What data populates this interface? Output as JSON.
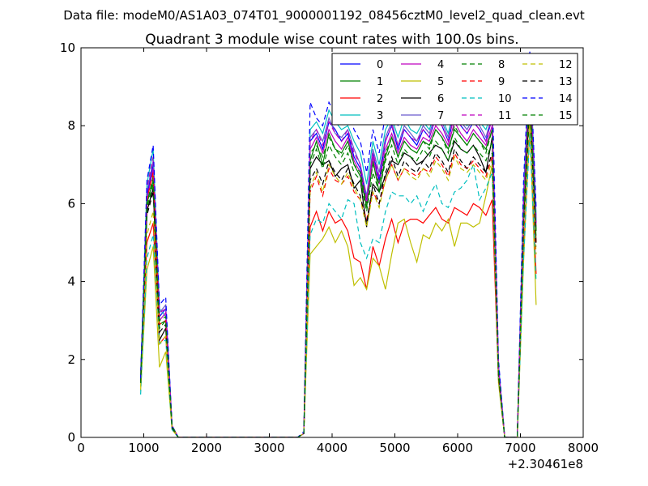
{
  "suptitle": "Data file: modeM0/AS1A03_074T01_9000001192_08456cztM0_level2_quad_clean.evt",
  "chart_data": {
    "type": "line",
    "title": "Quadrant 3 module wise count rates with 100.0s bins.",
    "xlabel": "",
    "ylabel": "",
    "x_offset_label": "+2.30461e8",
    "xlim": [
      0,
      8000
    ],
    "ylim": [
      0,
      10
    ],
    "xticks": [
      0,
      1000,
      2000,
      3000,
      4000,
      5000,
      6000,
      7000,
      8000
    ],
    "yticks": [
      0,
      2,
      4,
      6,
      8,
      10
    ],
    "xtick_labels": [
      "0",
      "1000",
      "2000",
      "3000",
      "4000",
      "5000",
      "6000",
      "7000",
      "8000"
    ],
    "ytick_labels": [
      "0",
      "2",
      "4",
      "6",
      "8",
      "10"
    ],
    "grid": false,
    "legend": {
      "placement": "top-right",
      "columns": 4
    },
    "x": [
      950,
      1050,
      1150,
      1250,
      1350,
      1450,
      1550,
      1650,
      1750,
      1850,
      1950,
      2050,
      2150,
      2250,
      2350,
      2450,
      2550,
      2650,
      2750,
      2850,
      2950,
      3050,
      3150,
      3250,
      3350,
      3450,
      3550,
      3650,
      3750,
      3850,
      3950,
      4050,
      4150,
      4250,
      4350,
      4450,
      4550,
      4650,
      4750,
      4850,
      4950,
      5050,
      5150,
      5250,
      5350,
      5450,
      5550,
      5650,
      5750,
      5850,
      5950,
      6050,
      6150,
      6250,
      6350,
      6450,
      6550,
      6650,
      6750,
      6850,
      6950,
      7050,
      7150,
      7250
    ],
    "series": [
      {
        "name": "0",
        "color": "#0000ff",
        "dash": "solid",
        "values": [
          1.5,
          6.2,
          7.0,
          3.1,
          3.3,
          0.3,
          0,
          0,
          0,
          0,
          0,
          0,
          0,
          0,
          0,
          0,
          0,
          0,
          0,
          0,
          0,
          0,
          0,
          0,
          0,
          0,
          0.1,
          7.6,
          7.8,
          7.4,
          8.1,
          7.9,
          7.6,
          7.8,
          7.2,
          6.9,
          6.1,
          7.3,
          6.6,
          7.6,
          8.0,
          7.4,
          7.9,
          7.7,
          7.5,
          7.9,
          7.7,
          8.2,
          8.0,
          7.6,
          8.3,
          8.0,
          7.8,
          8.1,
          7.9,
          7.6,
          8.2,
          1.8,
          0,
          0,
          0,
          6.0,
          9.5,
          5.5
        ]
      },
      {
        "name": "1",
        "color": "#008000",
        "dash": "solid",
        "values": [
          1.6,
          6.0,
          6.6,
          2.9,
          3.0,
          0.3,
          0,
          0,
          0,
          0,
          0,
          0,
          0,
          0,
          0,
          0,
          0,
          0,
          0,
          0,
          0,
          0,
          0,
          0,
          0,
          0,
          0.1,
          7.1,
          7.6,
          7.0,
          7.8,
          7.4,
          7.3,
          7.6,
          7.0,
          6.7,
          5.9,
          7.1,
          6.3,
          7.2,
          7.7,
          7.2,
          7.6,
          7.4,
          7.3,
          7.6,
          7.5,
          7.9,
          7.7,
          7.4,
          7.9,
          7.7,
          7.5,
          7.8,
          7.6,
          7.4,
          7.9,
          1.7,
          0,
          0,
          0,
          5.8,
          9.0,
          5.3
        ]
      },
      {
        "name": "2",
        "color": "#ff0000",
        "dash": "solid",
        "values": [
          1.4,
          5.0,
          5.5,
          2.4,
          2.6,
          0.25,
          0,
          0,
          0,
          0,
          0,
          0,
          0,
          0,
          0,
          0,
          0,
          0,
          0,
          0,
          0,
          0,
          0,
          0,
          0,
          0,
          0.1,
          5.4,
          5.8,
          5.3,
          5.8,
          5.5,
          5.6,
          5.3,
          4.6,
          4.5,
          3.8,
          4.9,
          4.4,
          5.1,
          5.6,
          5.0,
          5.5,
          5.6,
          5.6,
          5.5,
          5.7,
          5.9,
          5.6,
          5.5,
          5.9,
          5.8,
          5.7,
          6.0,
          5.9,
          5.7,
          6.1,
          1.5,
          0,
          0,
          0,
          4.8,
          7.9,
          4.2
        ]
      },
      {
        "name": "3",
        "color": "#00bfbf",
        "dash": "solid",
        "values": [
          1.5,
          6.5,
          7.4,
          3.3,
          3.1,
          0.3,
          0,
          0,
          0,
          0,
          0,
          0,
          0,
          0,
          0,
          0,
          0,
          0,
          0,
          0,
          0,
          0,
          0,
          0,
          0,
          0,
          0.1,
          7.9,
          8.1,
          7.8,
          8.4,
          8.1,
          7.9,
          8.0,
          7.6,
          7.3,
          6.5,
          7.6,
          7.0,
          7.9,
          8.2,
          7.7,
          8.2,
          7.9,
          7.8,
          8.1,
          7.9,
          8.4,
          8.2,
          7.8,
          8.5,
          8.2,
          8.0,
          8.3,
          8.1,
          7.9,
          8.4,
          1.9,
          0,
          0,
          0,
          6.3,
          9.8,
          5.7
        ]
      },
      {
        "name": "4",
        "color": "#bf00bf",
        "dash": "solid",
        "values": [
          1.5,
          6.1,
          6.9,
          3.0,
          3.2,
          0.3,
          0,
          0,
          0,
          0,
          0,
          0,
          0,
          0,
          0,
          0,
          0,
          0,
          0,
          0,
          0,
          0,
          0,
          0,
          0,
          0,
          0.1,
          7.4,
          7.7,
          7.3,
          7.9,
          7.6,
          7.4,
          7.7,
          7.1,
          6.8,
          6.0,
          7.2,
          6.5,
          7.4,
          7.8,
          7.3,
          7.7,
          7.5,
          7.4,
          7.7,
          7.6,
          8.0,
          7.8,
          7.5,
          8.1,
          7.8,
          7.6,
          7.9,
          7.7,
          7.5,
          8.0,
          1.8,
          0,
          0,
          0,
          5.9,
          9.3,
          5.4
        ]
      },
      {
        "name": "5",
        "color": "#bfbf00",
        "dash": "solid",
        "values": [
          1.2,
          4.3,
          4.9,
          1.8,
          2.2,
          0.2,
          0,
          0,
          0,
          0,
          0,
          0,
          0,
          0,
          0,
          0,
          0,
          0,
          0,
          0,
          0,
          0,
          0,
          0,
          0,
          0,
          0.1,
          4.7,
          4.9,
          5.1,
          5.4,
          5.0,
          5.3,
          4.9,
          3.9,
          4.1,
          3.8,
          4.6,
          4.4,
          3.8,
          4.7,
          5.5,
          5.6,
          5.0,
          4.5,
          5.2,
          5.1,
          5.5,
          5.3,
          5.6,
          4.9,
          5.5,
          5.5,
          5.4,
          5.5,
          6.2,
          7.0,
          1.4,
          0,
          0,
          0,
          4.5,
          8.0,
          3.4
        ]
      },
      {
        "name": "6",
        "color": "#000000",
        "dash": "solid",
        "values": [
          1.4,
          5.8,
          6.4,
          2.5,
          2.8,
          0.25,
          0,
          0,
          0,
          0,
          0,
          0,
          0,
          0,
          0,
          0,
          0,
          0,
          0,
          0,
          0,
          0,
          0,
          0,
          0,
          0,
          0.1,
          6.9,
          7.2,
          7.0,
          7.1,
          6.7,
          6.9,
          7.0,
          6.4,
          6.6,
          5.4,
          6.5,
          6.3,
          6.7,
          7.1,
          7.0,
          7.3,
          7.2,
          7.0,
          7.1,
          7.3,
          7.5,
          7.4,
          7.1,
          7.6,
          7.4,
          7.3,
          7.5,
          7.2,
          6.8,
          7.7,
          1.6,
          0,
          0,
          0,
          5.5,
          8.8,
          5.0
        ]
      },
      {
        "name": "7",
        "color": "#6a5acd",
        "dash": "solid",
        "values": [
          1.5,
          6.3,
          7.1,
          3.2,
          3.4,
          0.3,
          0,
          0,
          0,
          0,
          0,
          0,
          0,
          0,
          0,
          0,
          0,
          0,
          0,
          0,
          0,
          0,
          0,
          0,
          0,
          0,
          0.1,
          7.7,
          7.9,
          7.6,
          8.2,
          7.8,
          7.7,
          7.9,
          7.4,
          7.0,
          6.2,
          7.4,
          6.8,
          7.7,
          8.1,
          7.5,
          8.0,
          7.8,
          7.6,
          8.0,
          7.8,
          8.3,
          8.1,
          7.7,
          8.4,
          8.1,
          7.9,
          8.2,
          8.0,
          7.7,
          8.3,
          1.8,
          0,
          0,
          0,
          6.1,
          9.6,
          5.6
        ]
      },
      {
        "name": "8",
        "color": "#008000",
        "dash": "dashed",
        "values": [
          1.4,
          6.0,
          6.7,
          3.0,
          3.1,
          0.3,
          0,
          0,
          0,
          0,
          0,
          0,
          0,
          0,
          0,
          0,
          0,
          0,
          0,
          0,
          0,
          0,
          0,
          0,
          0,
          0,
          0.1,
          7.3,
          7.5,
          7.2,
          7.7,
          7.4,
          7.2,
          7.5,
          7.0,
          6.8,
          6.0,
          7.0,
          6.5,
          7.3,
          7.7,
          7.2,
          7.6,
          7.4,
          7.3,
          7.6,
          7.4,
          7.9,
          7.7,
          7.3,
          8.0,
          7.7,
          7.5,
          7.8,
          7.6,
          7.3,
          7.9,
          1.7,
          0,
          0,
          0,
          5.8,
          9.1,
          5.3
        ]
      },
      {
        "name": "9",
        "color": "#ff0000",
        "dash": "dashed",
        "values": [
          1.5,
          6.1,
          6.8,
          2.9,
          3.0,
          0.3,
          0,
          0,
          0,
          0,
          0,
          0,
          0,
          0,
          0,
          0,
          0,
          0,
          0,
          0,
          0,
          0,
          0,
          0,
          0,
          0,
          0.1,
          6.3,
          6.7,
          6.2,
          6.9,
          6.6,
          6.5,
          6.7,
          6.3,
          6.1,
          5.6,
          6.3,
          6.0,
          6.6,
          7.0,
          6.6,
          6.9,
          6.8,
          6.7,
          6.9,
          6.8,
          7.2,
          7.0,
          6.7,
          7.3,
          7.0,
          6.9,
          7.1,
          6.9,
          6.7,
          7.2,
          1.6,
          0,
          0,
          0,
          5.5,
          8.7,
          5.0
        ]
      },
      {
        "name": "10",
        "color": "#00bfbf",
        "dash": "dashed",
        "values": [
          1.1,
          4.6,
          5.2,
          2.4,
          2.5,
          0.2,
          0,
          0,
          0,
          0,
          0,
          0,
          0,
          0,
          0,
          0,
          0,
          0,
          0,
          0,
          0,
          0,
          0,
          0,
          0,
          0,
          0.1,
          5.2,
          5.6,
          5.5,
          6.0,
          5.8,
          5.6,
          6.1,
          6.0,
          5.0,
          4.6,
          5.1,
          5.0,
          5.8,
          6.3,
          6.2,
          6.2,
          6.0,
          6.2,
          5.8,
          6.2,
          6.5,
          6.0,
          5.9,
          6.3,
          6.4,
          6.6,
          7.0,
          6.1,
          6.4,
          6.8,
          1.5,
          0,
          0,
          0,
          4.6,
          7.8,
          4.0
        ]
      },
      {
        "name": "11",
        "color": "#bf00bf",
        "dash": "dashed",
        "values": [
          1.5,
          6.4,
          7.2,
          3.2,
          3.3,
          0.3,
          0,
          0,
          0,
          0,
          0,
          0,
          0,
          0,
          0,
          0,
          0,
          0,
          0,
          0,
          0,
          0,
          0,
          0,
          0,
          0,
          0.1,
          7.6,
          7.9,
          7.5,
          8.1,
          7.8,
          7.6,
          7.9,
          7.3,
          7.0,
          6.1,
          7.3,
          6.7,
          7.6,
          8.0,
          7.5,
          7.9,
          7.7,
          7.6,
          7.9,
          7.7,
          8.2,
          8.0,
          7.6,
          8.3,
          8.0,
          7.8,
          8.1,
          7.9,
          7.6,
          8.2,
          1.8,
          0,
          0,
          0,
          6.0,
          9.4,
          5.5
        ]
      },
      {
        "name": "12",
        "color": "#bfbf00",
        "dash": "dashed",
        "values": [
          1.3,
          5.2,
          5.8,
          2.4,
          2.6,
          0.25,
          0,
          0,
          0,
          0,
          0,
          0,
          0,
          0,
          0,
          0,
          0,
          0,
          0,
          0,
          0,
          0,
          0,
          0,
          0,
          0,
          0.1,
          6.4,
          6.8,
          6.3,
          7.0,
          6.7,
          6.5,
          6.8,
          6.4,
          6.1,
          5.4,
          6.3,
          5.9,
          6.6,
          7.0,
          6.6,
          6.9,
          6.7,
          6.6,
          6.9,
          6.7,
          7.1,
          6.9,
          6.6,
          7.2,
          6.9,
          6.8,
          7.0,
          6.8,
          6.6,
          7.1,
          1.5,
          0,
          0,
          0,
          5.3,
          8.4,
          4.7
        ]
      },
      {
        "name": "13",
        "color": "#000000",
        "dash": "dashed",
        "values": [
          1.4,
          5.7,
          6.3,
          2.7,
          2.9,
          0.25,
          0,
          0,
          0,
          0,
          0,
          0,
          0,
          0,
          0,
          0,
          0,
          0,
          0,
          0,
          0,
          0,
          0,
          0,
          0,
          0,
          0.1,
          6.6,
          6.9,
          6.5,
          7.1,
          6.8,
          6.6,
          6.9,
          6.5,
          6.2,
          5.5,
          6.5,
          6.0,
          6.8,
          7.2,
          6.7,
          7.1,
          6.9,
          6.8,
          7.1,
          6.9,
          7.3,
          7.1,
          6.8,
          7.4,
          7.1,
          6.9,
          7.2,
          7.0,
          6.8,
          7.3,
          1.6,
          0,
          0,
          0,
          5.4,
          8.6,
          4.9
        ]
      },
      {
        "name": "14",
        "color": "#0000ff",
        "dash": "dashed",
        "values": [
          1.5,
          6.6,
          7.5,
          3.4,
          3.6,
          0.3,
          0,
          0,
          0,
          0,
          0,
          0,
          0,
          0,
          0,
          0,
          0,
          0,
          0,
          0,
          0,
          0,
          0,
          0,
          0,
          0,
          0.15,
          8.6,
          8.2,
          8.0,
          8.6,
          8.3,
          8.1,
          8.4,
          7.9,
          7.6,
          6.8,
          7.9,
          7.3,
          8.3,
          8.7,
          8.0,
          8.7,
          8.5,
          8.3,
          8.8,
          8.5,
          9.0,
          8.8,
          8.3,
          9.1,
          8.8,
          8.5,
          8.9,
          8.7,
          8.3,
          9.1,
          2.0,
          0,
          0,
          0,
          6.6,
          9.9,
          5.9
        ]
      },
      {
        "name": "15",
        "color": "#008000",
        "dash": "dashed",
        "values": [
          1.4,
          5.9,
          6.5,
          2.8,
          3.0,
          0.28,
          0,
          0,
          0,
          0,
          0,
          0,
          0,
          0,
          0,
          0,
          0,
          0,
          0,
          0,
          0,
          0,
          0,
          0,
          0,
          0,
          0.1,
          7.0,
          7.4,
          6.9,
          7.5,
          7.2,
          7.0,
          7.3,
          6.8,
          6.6,
          5.8,
          6.8,
          6.3,
          7.1,
          7.5,
          7.0,
          7.4,
          7.2,
          7.1,
          7.4,
          7.2,
          7.6,
          7.4,
          7.1,
          7.7,
          7.4,
          7.3,
          7.5,
          7.3,
          7.1,
          7.6,
          1.7,
          0,
          0,
          0,
          5.6,
          8.9,
          5.1
        ]
      }
    ]
  }
}
